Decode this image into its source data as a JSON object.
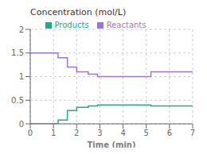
{
  "chart_data": {
    "type": "line",
    "title": "Concentration (mol/L)",
    "x_label": "Time (min)",
    "x": [
      0,
      1.2,
      1.2,
      1.6,
      1.6,
      2.0,
      2.0,
      2.5,
      2.5,
      2.9,
      2.9,
      5.2,
      5.2,
      7.0
    ],
    "series": [
      {
        "name": "Reactants",
        "color": "#9977cc",
        "values": [
          1.5,
          1.5,
          1.4,
          1.4,
          1.2,
          1.2,
          1.1,
          1.1,
          1.05,
          1.05,
          1.0,
          1.0,
          1.1,
          1.1
        ]
      },
      {
        "name": "Products",
        "color": "#22aa88",
        "values": [
          0,
          0,
          0.08,
          0.08,
          0.28,
          0.28,
          0.35,
          0.35,
          0.38,
          0.38,
          0.4,
          0.4,
          0.38,
          0.38
        ]
      }
    ],
    "xlim": [
      0,
      7
    ],
    "ylim": [
      0,
      2
    ],
    "xticks": [
      0,
      1,
      2,
      3,
      4,
      5,
      6,
      7
    ],
    "yticks": [
      0,
      0.5,
      1,
      1.5,
      2
    ],
    "grid": true,
    "legend": "top"
  }
}
